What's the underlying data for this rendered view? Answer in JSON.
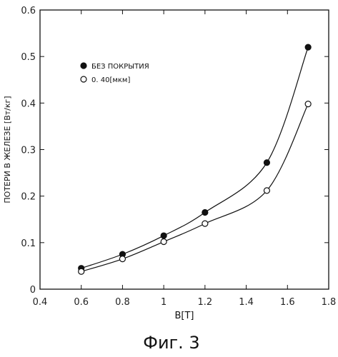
{
  "chart_data": {
    "type": "line",
    "xlabel": "B[T]",
    "ylabel": "ПОТЕРИ В ЖЕЛЕЗЕ [Вт/кг]",
    "xlim": [
      0.4,
      1.8
    ],
    "ylim": [
      0,
      0.6
    ],
    "xticks": [
      "0.4",
      "0.6",
      "0.8",
      "1",
      "1.2",
      "1.4",
      "1.6",
      "1.8"
    ],
    "yticks": [
      "0",
      "0.1",
      "0.2",
      "0.3",
      "0.4",
      "0.5",
      "0.6"
    ],
    "grid": false,
    "legend_position": "top-left",
    "series": [
      {
        "name": "БЕЗ ПОКРЫТИЯ",
        "marker": "filled-circle",
        "x": [
          0.6,
          0.8,
          1.0,
          1.2,
          1.5,
          1.7
        ],
        "y": [
          0.045,
          0.075,
          0.115,
          0.165,
          0.272,
          0.52
        ]
      },
      {
        "name": "0. 40[мкм]",
        "marker": "open-circle",
        "x": [
          0.6,
          0.8,
          1.0,
          1.2,
          1.5,
          1.7
        ],
        "y": [
          0.038,
          0.065,
          0.102,
          0.141,
          0.212,
          0.398
        ]
      }
    ]
  },
  "caption": "Фиг. 3"
}
